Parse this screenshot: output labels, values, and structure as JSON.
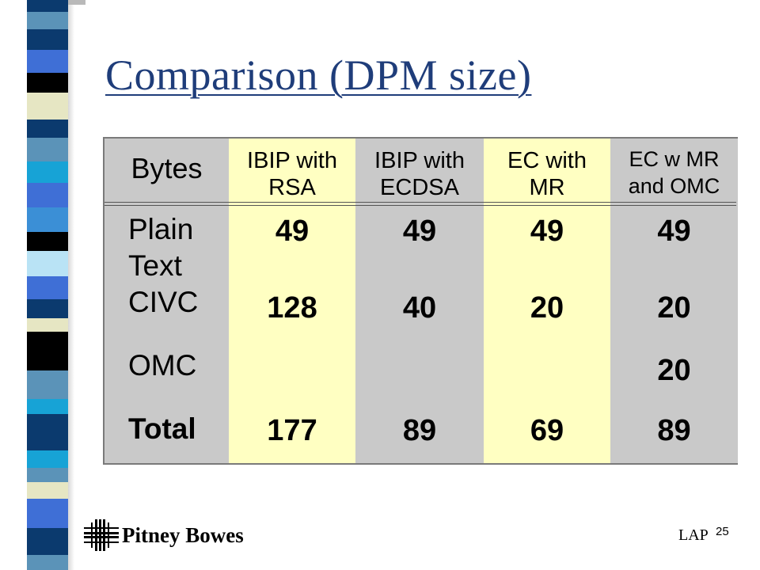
{
  "slide": {
    "title": "Comparison (DPM size)"
  },
  "table": {
    "headers": [
      "Bytes",
      "IBIP with RSA",
      "IBIP with ECDSA",
      "EC with MR",
      "EC w MR and OMC"
    ],
    "header_lines": [
      [
        "Bytes"
      ],
      [
        "IBIP with",
        "RSA"
      ],
      [
        "IBIP with",
        "ECDSA"
      ],
      [
        "EC with",
        "MR"
      ],
      [
        "EC w MR",
        "and OMC"
      ]
    ],
    "rows": [
      {
        "label": "Plain Text",
        "label_lines": [
          "Plain",
          "Text"
        ],
        "values": [
          "49",
          "49",
          "49",
          "49"
        ]
      },
      {
        "label": "CIVC",
        "label_lines": [
          "CIVC"
        ],
        "values": [
          "128",
          "40",
          "20",
          "20"
        ]
      },
      {
        "label": "OMC",
        "label_lines": [
          "OMC"
        ],
        "values": [
          "",
          "",
          "",
          "20"
        ]
      },
      {
        "label": "Total",
        "label_lines": [
          "Total"
        ],
        "values": [
          "177",
          "89",
          "69",
          "89"
        ]
      }
    ],
    "colors": {
      "highlight": "#ffffc2",
      "gray": "#c9c9c9"
    }
  },
  "footer": {
    "company": "Pitney Bowes",
    "author": "LAP",
    "page_number": "25"
  }
}
